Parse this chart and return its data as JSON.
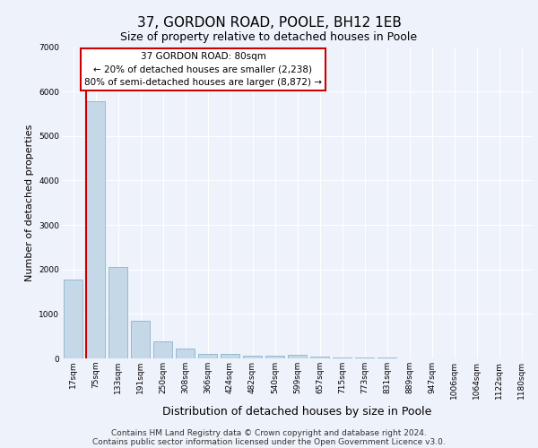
{
  "title": "37, GORDON ROAD, POOLE, BH12 1EB",
  "subtitle": "Size of property relative to detached houses in Poole",
  "xlabel": "Distribution of detached houses by size in Poole",
  "ylabel": "Number of detached properties",
  "categories": [
    "17sqm",
    "75sqm",
    "133sqm",
    "191sqm",
    "250sqm",
    "308sqm",
    "366sqm",
    "424sqm",
    "482sqm",
    "540sqm",
    "599sqm",
    "657sqm",
    "715sqm",
    "773sqm",
    "831sqm",
    "889sqm",
    "947sqm",
    "1006sqm",
    "1064sqm",
    "1122sqm",
    "1180sqm"
  ],
  "values": [
    1780,
    5780,
    2060,
    840,
    390,
    230,
    110,
    105,
    70,
    55,
    80,
    40,
    30,
    20,
    15,
    10,
    10,
    8,
    6,
    5,
    5
  ],
  "bar_color": "#c5d8e8",
  "bar_edge_color": "#8ab4cd",
  "marker_color": "#cc0000",
  "annotation_text": "37 GORDON ROAD: 80sqm\n← 20% of detached houses are smaller (2,238)\n80% of semi-detached houses are larger (8,872) →",
  "annotation_box_color": "#ffffff",
  "annotation_box_edge_color": "#cc0000",
  "ylim": [
    0,
    7000
  ],
  "yticks": [
    0,
    1000,
    2000,
    3000,
    4000,
    5000,
    6000,
    7000
  ],
  "background_color": "#eef2fa",
  "footer_line1": "Contains HM Land Registry data © Crown copyright and database right 2024.",
  "footer_line2": "Contains public sector information licensed under the Open Government Licence v3.0.",
  "title_fontsize": 11,
  "subtitle_fontsize": 9,
  "xlabel_fontsize": 9,
  "ylabel_fontsize": 8,
  "tick_fontsize": 6.5,
  "footer_fontsize": 6.5,
  "annot_fontsize": 7.5
}
